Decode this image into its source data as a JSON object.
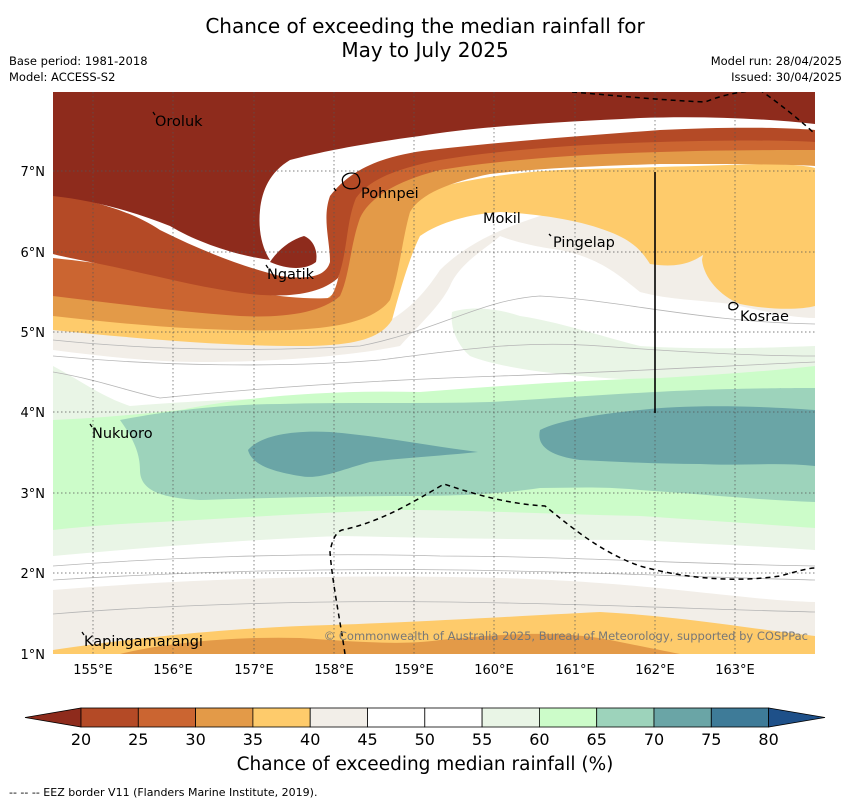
{
  "header": {
    "title_line1": "Chance of exceeding the median rainfall for",
    "title_line2": "May to July 2025",
    "base_period": "Base period: 1981-2018",
    "model": "Model: ACCESS-S2",
    "model_run": "Model run: 28/04/2025",
    "issued": "Issued: 30/04/2025"
  },
  "map": {
    "copyright": "© Commonwealth of Australia 2025, Bureau of Meteorology, supported by COSPPac",
    "x_ticks": [
      "155°E",
      "156°E",
      "157°E",
      "158°E",
      "159°E",
      "160°E",
      "161°E",
      "162°E",
      "163°E"
    ],
    "y_ticks": [
      "7°N",
      "6°N",
      "5°N",
      "4°N",
      "3°N",
      "2°N",
      "1°N"
    ],
    "places": [
      "Oroluk",
      "Pohnpei",
      "Mokil",
      "Pingelap",
      "Ngatik",
      "Kosrae",
      "Nukuoro",
      "Kapingamarangi"
    ]
  },
  "colorbar": {
    "ticks": [
      "20",
      "25",
      "30",
      "35",
      "40",
      "45",
      "50",
      "55",
      "60",
      "65",
      "70",
      "75",
      "80"
    ],
    "colors": [
      "#8e2b1c",
      "#b44a26",
      "#cb6531",
      "#e39a48",
      "#fecb6b",
      "#f2eee8",
      "#ffffff",
      "#ffffff",
      "#e9f5e6",
      "#ccfcc9",
      "#9dd3bb",
      "#6aa5a6",
      "#3e7b98",
      "#1e5089"
    ],
    "label": "Chance of exceeding median rainfall (%)"
  },
  "footnote": "--  --  -- EEZ border V11 (Flanders Marine Institute, 2019)."
}
